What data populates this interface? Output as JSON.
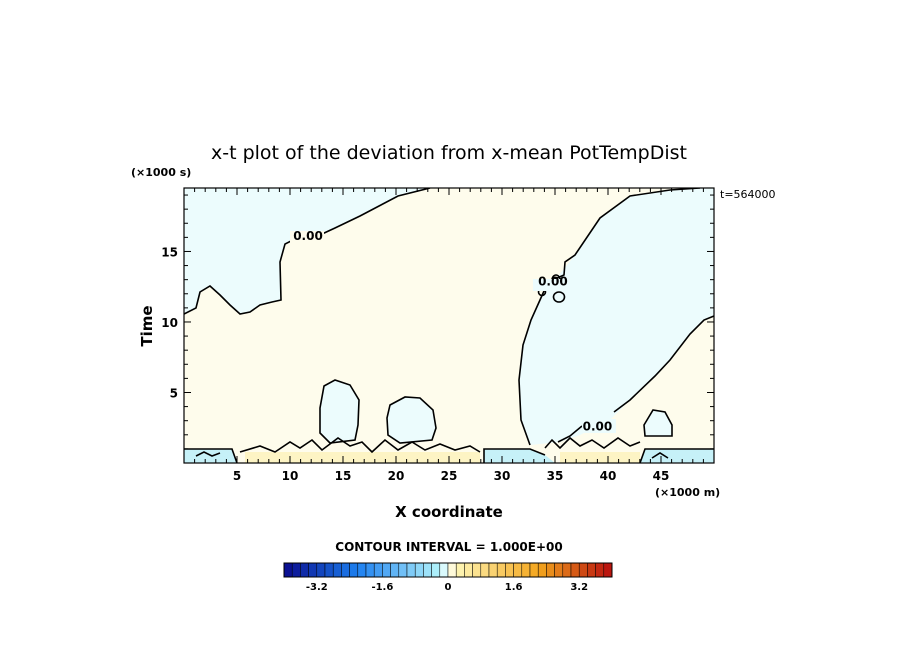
{
  "chart_data": {
    "type": "contour",
    "title": "x-t plot of the deviation from x-mean PotTempDist",
    "xlabel": "X coordinate",
    "ylabel": "Time",
    "x_unit": "(×1000 m)",
    "y_unit": "(×1000 s)",
    "time_label": "t=564000",
    "xlim": [
      0,
      50
    ],
    "ylim": [
      0,
      19.5
    ],
    "x_ticks": [
      5,
      10,
      15,
      20,
      25,
      30,
      35,
      40,
      45
    ],
    "y_ticks": [
      5,
      10,
      15
    ],
    "contour_labels": [
      {
        "text": "0.00",
        "x": 11.7,
        "y": 15.8
      },
      {
        "text": "0.00",
        "x": 34.8,
        "y": 12.6
      },
      {
        "text": "0.00",
        "x": 39.0,
        "y": 2.3
      }
    ],
    "regions": {
      "negative": "below zero (light cyan)",
      "positive": "above zero (light yellow)"
    },
    "colorbar": {
      "title": "CONTOUR INTERVAL = 1.000E+00",
      "min": -4.0,
      "max": 4.0,
      "step": 0.2,
      "tick_labels": [
        "-3.2",
        "-1.6",
        "0",
        "1.6",
        "3.2"
      ],
      "tick_values": [
        -3.2,
        -1.6,
        0,
        1.6,
        3.2
      ],
      "colors": {
        "dark_negative": "#0a0a8c",
        "mid_negative": "#1c7ff0",
        "light_negative": "#b4f4fb",
        "zero": "#ffffff",
        "light_positive": "#fef6b6",
        "mid_positive": "#f3a61e",
        "dark_positive": "#b80e0e"
      }
    },
    "fill_colors": {
      "negative_fill": "#ecfcfd",
      "positive_fill": "#fefcec",
      "strong_positive_fill": "#fdf4c4",
      "strong_negative_fill": "#c6f1f8"
    }
  }
}
